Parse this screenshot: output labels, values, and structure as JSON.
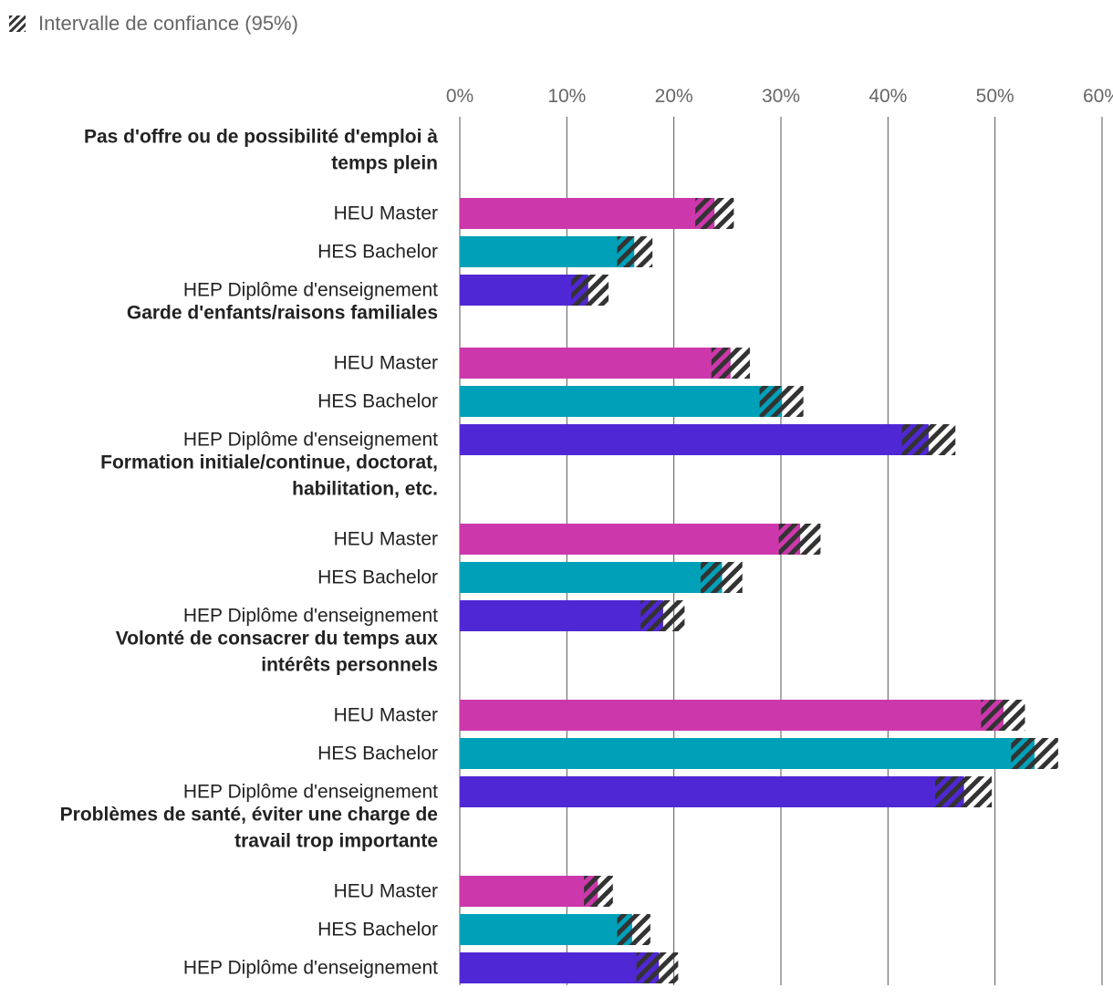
{
  "legend": {
    "ci_label": "Intervalle de confiance (95%)",
    "ci_icon": "hatched-square-icon"
  },
  "colors": {
    "HEU Master": "#cc38ab",
    "HES Bachelor": "#00a1b8",
    "HEP Diplôme d'enseignement": "#5027d4",
    "hatch": "#333333",
    "grid": "#555555"
  },
  "chart_data": {
    "type": "bar",
    "orientation": "horizontal",
    "title": "",
    "xlabel": "",
    "ylabel": "",
    "xlim": [
      0,
      60
    ],
    "xticks": [
      "0%",
      "10%",
      "20%",
      "30%",
      "40%",
      "50%",
      "60%"
    ],
    "tick_values": [
      0,
      10,
      20,
      30,
      40,
      50,
      60
    ],
    "series_names": [
      "HEU Master",
      "HES Bachelor",
      "HEP Diplôme d'enseignement"
    ],
    "categories": [
      {
        "label_lines": [
          "Pas d'offre ou de possibilité d'emploi à",
          "temps plein"
        ],
        "rows": [
          {
            "series": "HEU Master",
            "value": 23.8,
            "ci_low": 22.0,
            "ci_high": 25.6
          },
          {
            "series": "HES Bachelor",
            "value": 16.3,
            "ci_low": 14.7,
            "ci_high": 18.0
          },
          {
            "series": "HEP Diplôme d'enseignement",
            "value": 12.0,
            "ci_low": 10.4,
            "ci_high": 13.9
          }
        ]
      },
      {
        "label_lines": [
          "Garde d'enfants/raisons familiales"
        ],
        "rows": [
          {
            "series": "HEU Master",
            "value": 25.3,
            "ci_low": 23.5,
            "ci_high": 27.1
          },
          {
            "series": "HES Bachelor",
            "value": 30.1,
            "ci_low": 28.0,
            "ci_high": 32.1
          },
          {
            "series": "HEP Diplôme d'enseignement",
            "value": 43.8,
            "ci_low": 41.3,
            "ci_high": 46.3
          }
        ]
      },
      {
        "label_lines": [
          "Formation initiale/continue, doctorat,",
          "habilitation, etc."
        ],
        "rows": [
          {
            "series": "HEU Master",
            "value": 31.8,
            "ci_low": 29.8,
            "ci_high": 33.7
          },
          {
            "series": "HES Bachelor",
            "value": 24.5,
            "ci_low": 22.5,
            "ci_high": 26.4
          },
          {
            "series": "HEP Diplôme d'enseignement",
            "value": 19.0,
            "ci_low": 16.9,
            "ci_high": 21.0
          }
        ]
      },
      {
        "label_lines": [
          "Volonté de consacrer du temps aux",
          "intérêts personnels"
        ],
        "rows": [
          {
            "series": "HEU Master",
            "value": 50.8,
            "ci_low": 48.7,
            "ci_high": 52.8
          },
          {
            "series": "HES Bachelor",
            "value": 53.7,
            "ci_low": 51.5,
            "ci_high": 55.9
          },
          {
            "series": "HEP Diplôme d'enseignement",
            "value": 47.1,
            "ci_low": 44.4,
            "ci_high": 49.7
          }
        ]
      },
      {
        "label_lines": [
          "Problèmes de santé, éviter une charge de",
          "travail trop importante"
        ],
        "rows": [
          {
            "series": "HEU Master",
            "value": 12.9,
            "ci_low": 11.6,
            "ci_high": 14.3
          },
          {
            "series": "HES Bachelor",
            "value": 16.1,
            "ci_low": 14.7,
            "ci_high": 17.8
          },
          {
            "series": "HEP Diplôme d'enseignement",
            "value": 18.6,
            "ci_low": 16.5,
            "ci_high": 20.4
          }
        ]
      }
    ]
  }
}
